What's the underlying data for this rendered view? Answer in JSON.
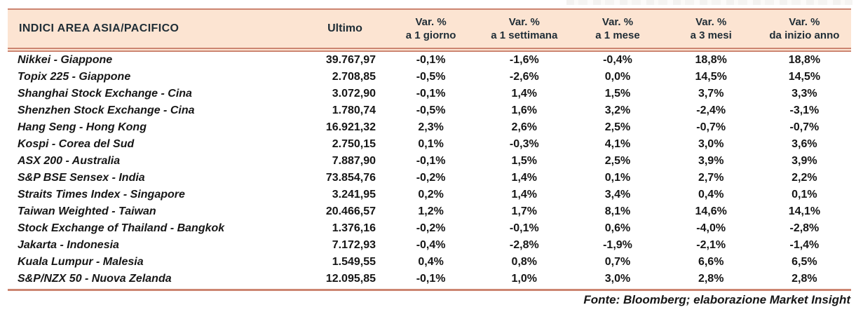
{
  "colors": {
    "header_bg": "#fce4d2",
    "rule": "#cc8571",
    "header_text": "#1f2d36",
    "body_text": "#161616"
  },
  "header": {
    "title": "INDICI AREA ASIA/PACIFICO",
    "ultimo": "Ultimo",
    "var_columns": [
      {
        "top": "Var. %",
        "bottom": "a 1 giorno"
      },
      {
        "top": "Var. %",
        "bottom": "a 1 settimana"
      },
      {
        "top": "Var. %",
        "bottom": "a 1 mese"
      },
      {
        "top": "Var. %",
        "bottom": "a 3 mesi"
      },
      {
        "top": "Var. %",
        "bottom": "da inizio anno"
      }
    ]
  },
  "rows": [
    {
      "name": "Nikkei - Giappone",
      "ultimo": "39.767,97",
      "d1": "-0,1%",
      "w1": "-1,6%",
      "m1": "-0,4%",
      "m3": "18,8%",
      "ytd": "18,8%"
    },
    {
      "name": "Topix 225 - Giappone",
      "ultimo": "2.708,85",
      "d1": "-0,5%",
      "w1": "-2,6%",
      "m1": "0,0%",
      "m3": "14,5%",
      "ytd": "14,5%"
    },
    {
      "name": "Shanghai Stock Exchange - Cina",
      "ultimo": "3.072,90",
      "d1": "-0,1%",
      "w1": "1,4%",
      "m1": "1,5%",
      "m3": "3,7%",
      "ytd": "3,3%"
    },
    {
      "name": "Shenzhen Stock Exchange - Cina",
      "ultimo": "1.780,74",
      "d1": "-0,5%",
      "w1": "1,6%",
      "m1": "3,2%",
      "m3": "-2,4%",
      "ytd": "-3,1%"
    },
    {
      "name": "Hang Seng - Hong Kong",
      "ultimo": "16.921,32",
      "d1": "2,3%",
      "w1": "2,6%",
      "m1": "2,5%",
      "m3": "-0,7%",
      "ytd": "-0,7%"
    },
    {
      "name": "Kospi - Corea del Sud",
      "ultimo": "2.750,15",
      "d1": "0,1%",
      "w1": "-0,3%",
      "m1": "4,1%",
      "m3": "3,0%",
      "ytd": "3,6%"
    },
    {
      "name": "ASX 200 - Australia",
      "ultimo": "7.887,90",
      "d1": "-0,1%",
      "w1": "1,5%",
      "m1": "2,5%",
      "m3": "3,9%",
      "ytd": "3,9%"
    },
    {
      "name": "S&P BSE Sensex - India",
      "ultimo": "73.854,76",
      "d1": "-0,2%",
      "w1": "1,4%",
      "m1": "0,1%",
      "m3": "2,7%",
      "ytd": "2,2%"
    },
    {
      "name": "Straits Times Index - Singapore",
      "ultimo": "3.241,95",
      "d1": "0,2%",
      "w1": "1,4%",
      "m1": "3,4%",
      "m3": "0,4%",
      "ytd": "0,1%"
    },
    {
      "name": "Taiwan Weighted - Taiwan",
      "ultimo": "20.466,57",
      "d1": "1,2%",
      "w1": "1,7%",
      "m1": "8,1%",
      "m3": "14,6%",
      "ytd": "14,1%"
    },
    {
      "name": "Stock Exchange of Thailand - Bangkok",
      "ultimo": "1.376,16",
      "d1": "-0,2%",
      "w1": "-0,1%",
      "m1": "0,6%",
      "m3": "-4,0%",
      "ytd": "-2,8%"
    },
    {
      "name": "Jakarta - Indonesia",
      "ultimo": "7.172,93",
      "d1": "-0,4%",
      "w1": "-2,8%",
      "m1": "-1,9%",
      "m3": "-2,1%",
      "ytd": "-1,4%"
    },
    {
      "name": "Kuala Lumpur - Malesia",
      "ultimo": "1.549,55",
      "d1": "0,4%",
      "w1": "0,8%",
      "m1": "0,7%",
      "m3": "6,6%",
      "ytd": "6,5%"
    },
    {
      "name": "S&P/NZX 50 - Nuova Zelanda",
      "ultimo": "12.095,85",
      "d1": "-0,1%",
      "w1": "1,0%",
      "m1": "3,0%",
      "m3": "2,8%",
      "ytd": "2,8%"
    }
  ],
  "footer": "Fonte: Bloomberg; elaborazione Market Insight",
  "chart_data": {
    "type": "table",
    "title": "INDICI AREA ASIA/PACIFICO",
    "columns": [
      "INDICI AREA ASIA/PACIFICO",
      "Ultimo",
      "Var. % a 1 giorno",
      "Var. % a 1 settimana",
      "Var. % a 1 mese",
      "Var. % a 3 mesi",
      "Var. % da inizio anno"
    ],
    "rows": [
      [
        "Nikkei - Giappone",
        "39.767,97",
        "-0,1%",
        "-1,6%",
        "-0,4%",
        "18,8%",
        "18,8%"
      ],
      [
        "Topix 225 - Giappone",
        "2.708,85",
        "-0,5%",
        "-2,6%",
        "0,0%",
        "14,5%",
        "14,5%"
      ],
      [
        "Shanghai Stock Exchange - Cina",
        "3.072,90",
        "-0,1%",
        "1,4%",
        "1,5%",
        "3,7%",
        "3,3%"
      ],
      [
        "Shenzhen Stock Exchange - Cina",
        "1.780,74",
        "-0,5%",
        "1,6%",
        "3,2%",
        "-2,4%",
        "-3,1%"
      ],
      [
        "Hang Seng - Hong Kong",
        "16.921,32",
        "2,3%",
        "2,6%",
        "2,5%",
        "-0,7%",
        "-0,7%"
      ],
      [
        "Kospi - Corea del Sud",
        "2.750,15",
        "0,1%",
        "-0,3%",
        "4,1%",
        "3,0%",
        "3,6%"
      ],
      [
        "ASX 200 - Australia",
        "7.887,90",
        "-0,1%",
        "1,5%",
        "2,5%",
        "3,9%",
        "3,9%"
      ],
      [
        "S&P BSE Sensex - India",
        "73.854,76",
        "-0,2%",
        "1,4%",
        "0,1%",
        "2,7%",
        "2,2%"
      ],
      [
        "Straits Times Index - Singapore",
        "3.241,95",
        "0,2%",
        "1,4%",
        "3,4%",
        "0,4%",
        "0,1%"
      ],
      [
        "Taiwan Weighted - Taiwan",
        "20.466,57",
        "1,2%",
        "1,7%",
        "8,1%",
        "14,6%",
        "14,1%"
      ],
      [
        "Stock Exchange of Thailand - Bangkok",
        "1.376,16",
        "-0,2%",
        "-0,1%",
        "0,6%",
        "-4,0%",
        "-2,8%"
      ],
      [
        "Jakarta - Indonesia",
        "7.172,93",
        "-0,4%",
        "-2,8%",
        "-1,9%",
        "-2,1%",
        "-1,4%"
      ],
      [
        "Kuala Lumpur - Malesia",
        "1.549,55",
        "0,4%",
        "0,8%",
        "0,7%",
        "6,6%",
        "6,5%"
      ],
      [
        "S&P/NZX 50 - Nuova Zelanda",
        "12.095,85",
        "-0,1%",
        "1,0%",
        "3,0%",
        "2,8%",
        "2,8%"
      ]
    ],
    "source_note": "Fonte: Bloomberg; elaborazione Market Insight"
  }
}
